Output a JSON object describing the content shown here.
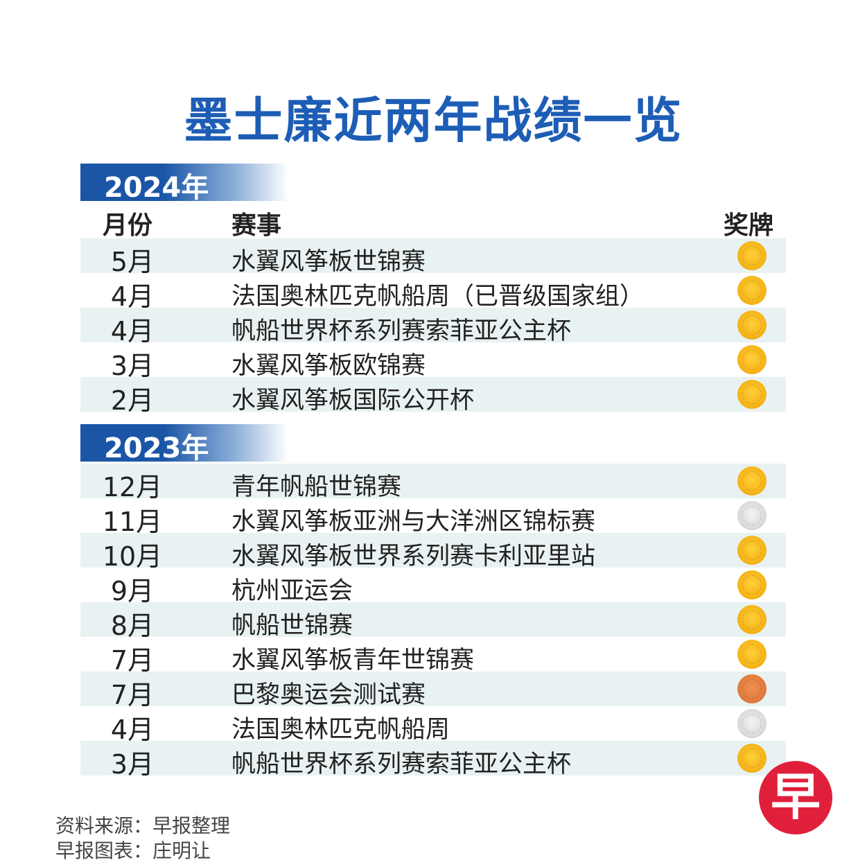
{
  "title": "墨士廉近两年战绩一览",
  "headers": {
    "month": "月份",
    "event": "赛事",
    "medal": "奖牌"
  },
  "colors": {
    "accent": "#1d5db5",
    "gold": "#f5b315",
    "silver": "#d9d9d9",
    "bronze": "#e07a3a",
    "stripe": "#e9f2f2"
  },
  "sections": [
    {
      "year": "2024年",
      "rows": [
        {
          "month": "5月",
          "event": "水翼风筝板世锦赛",
          "medal": "gold"
        },
        {
          "month": "4月",
          "event": "法国奥林匹克帆船周（已晋级国家组）",
          "medal": "gold"
        },
        {
          "month": "4月",
          "event": "帆船世界杯系列赛索菲亚公主杯",
          "medal": "gold"
        },
        {
          "month": "3月",
          "event": "水翼风筝板欧锦赛",
          "medal": "gold"
        },
        {
          "month": "2月",
          "event": "水翼风筝板国际公开杯",
          "medal": "gold"
        }
      ]
    },
    {
      "year": "2023年",
      "rows": [
        {
          "month": "12月",
          "event": "青年帆船世锦赛",
          "medal": "gold"
        },
        {
          "month": "11月",
          "event": "水翼风筝板亚洲与大洋洲区锦标赛",
          "medal": "silver"
        },
        {
          "month": "10月",
          "event": "水翼风筝板世界系列赛卡利亚里站",
          "medal": "gold"
        },
        {
          "month": "9月",
          "event": "杭州亚运会",
          "medal": "gold"
        },
        {
          "month": "8月",
          "event": "帆船世锦赛",
          "medal": "gold"
        },
        {
          "month": "7月",
          "event": "水翼风筝板青年世锦赛",
          "medal": "gold"
        },
        {
          "month": "7月",
          "event": "巴黎奥运会测试赛",
          "medal": "bronze"
        },
        {
          "month": "4月",
          "event": "法国奥林匹克帆船周",
          "medal": "silver"
        },
        {
          "month": "3月",
          "event": "帆船世界杯系列赛索菲亚公主杯",
          "medal": "gold"
        }
      ]
    }
  ],
  "footer": {
    "source": "资料来源：早报整理",
    "credit": "早报图表：庄明让"
  },
  "logo": "早"
}
